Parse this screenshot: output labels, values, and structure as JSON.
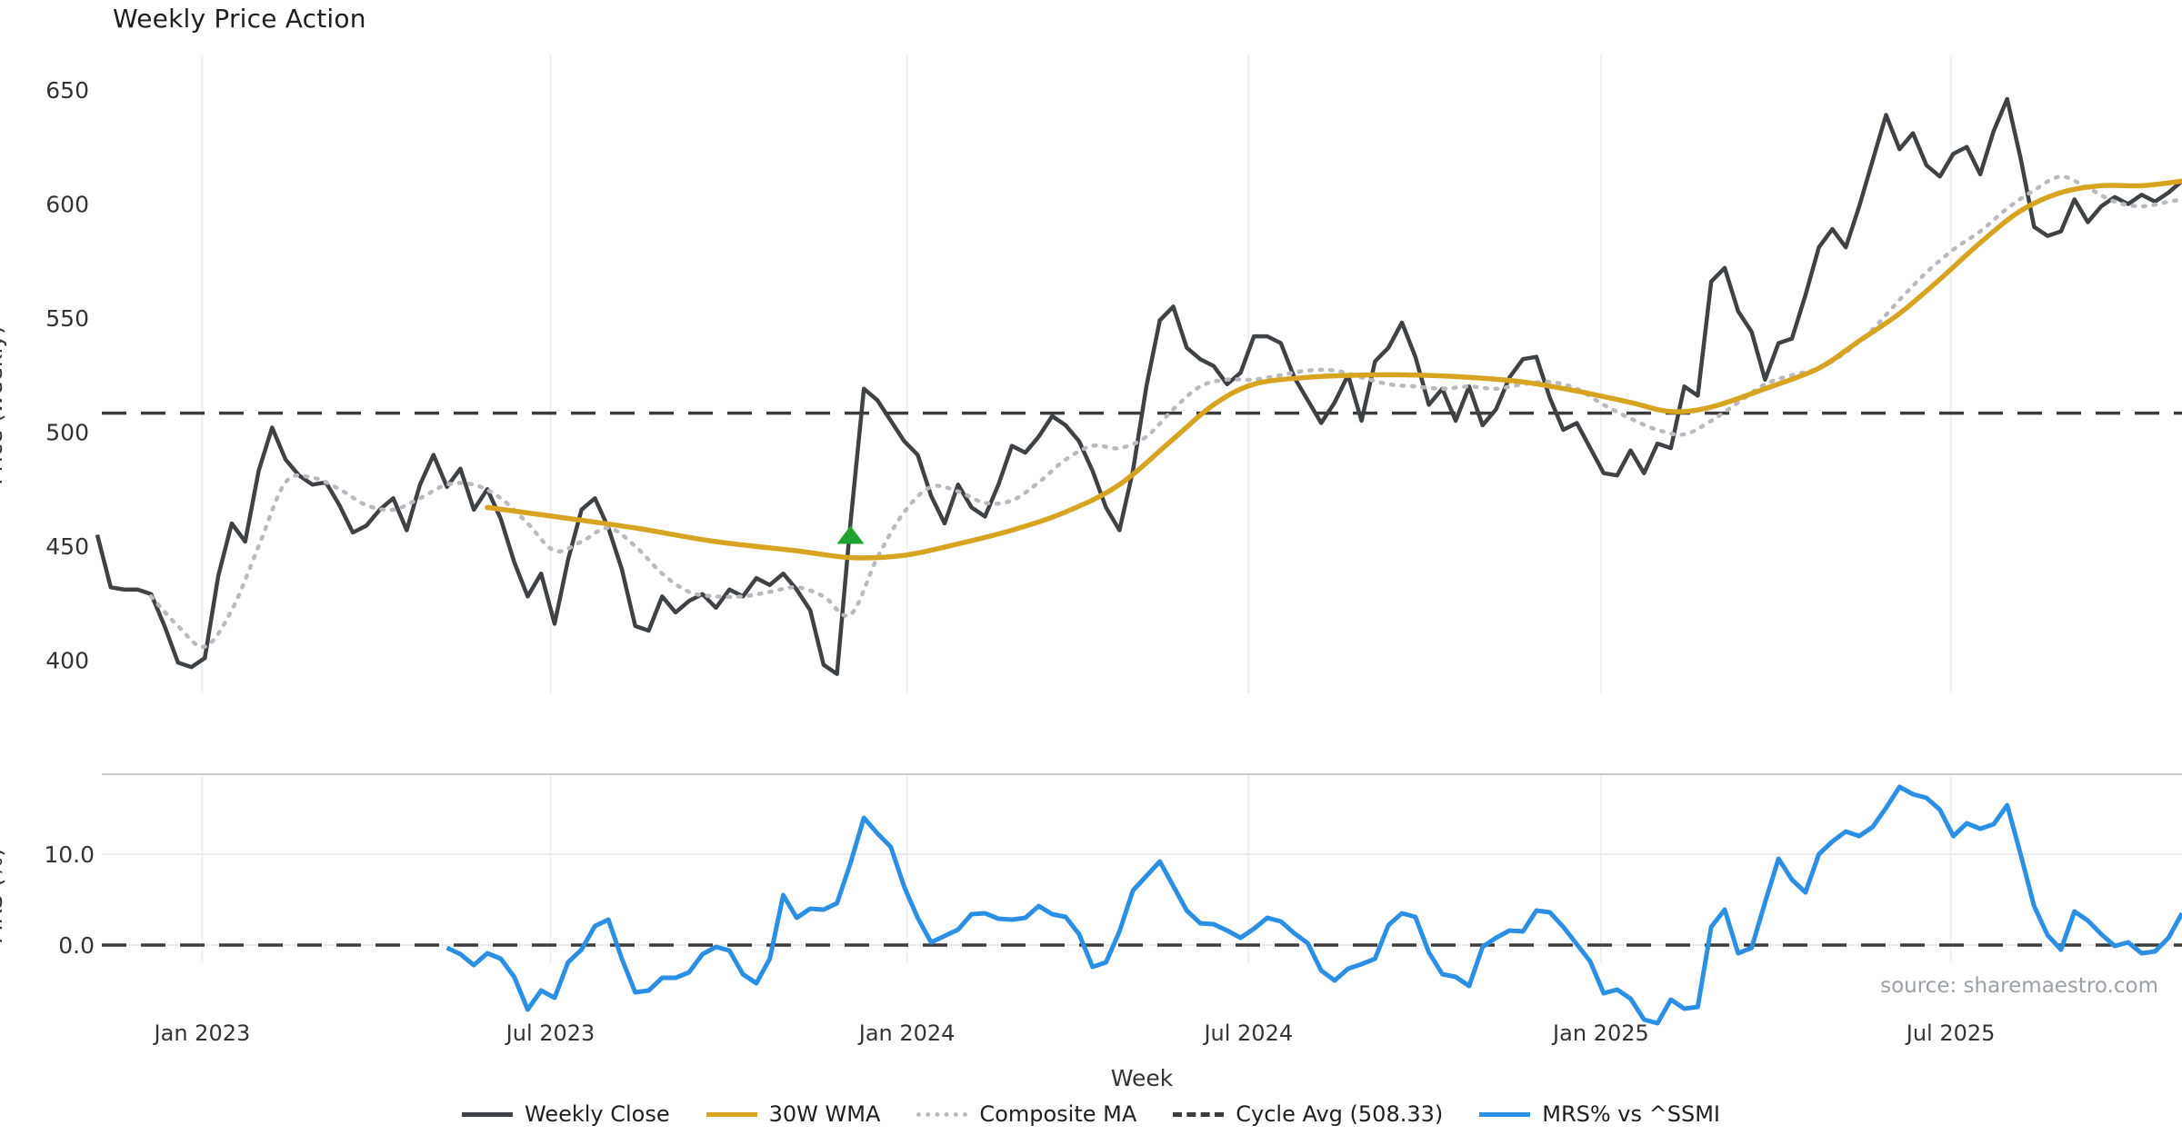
{
  "title": "Weekly Price Action",
  "source": "source: sharemaestro.com",
  "legend": {
    "items": [
      {
        "label": "Weekly Close",
        "color": "#3f4245",
        "style": "solid"
      },
      {
        "label": "30W WMA",
        "color": "#d7a422",
        "style": "solid"
      },
      {
        "label": "Composite MA",
        "color": "#b9b9bf",
        "style": "dotted"
      },
      {
        "label": "Cycle Avg (508.33)",
        "color": "#3c3c3c",
        "style": "dashed"
      },
      {
        "label": "MRS% vs ^SSMI",
        "color": "#2b8fe4",
        "style": "solid"
      }
    ]
  },
  "chart_data": {
    "type": "line",
    "xlabel": "Week",
    "x_unit": "week_index",
    "weeks_total": 156,
    "xticks": [
      {
        "week": 7.8,
        "label": "Jan 2023"
      },
      {
        "week": 33.7,
        "label": "Jul 2023"
      },
      {
        "week": 60.2,
        "label": "Jan 2024"
      },
      {
        "week": 85.6,
        "label": "Jul 2024"
      },
      {
        "week": 111.8,
        "label": "Jan 2025"
      },
      {
        "week": 137.8,
        "label": "Jul 2025"
      }
    ],
    "panels": [
      {
        "name": "price",
        "ylabel": "Price (weekly)",
        "ylim": [
          385.5,
          665.5
        ],
        "yticks": [
          400,
          450,
          500,
          550,
          600,
          650
        ],
        "grid": "vertical-only",
        "cycle_avg": 508.33,
        "marker": {
          "shape": "triangle-up",
          "week": 56,
          "price": 455,
          "color": "#21a331"
        },
        "series": [
          {
            "name": "Weekly Close",
            "color": "#3f4245",
            "style": "solid",
            "start_week": 0,
            "values": [
              455,
              432,
              431,
              431,
              429,
              415,
              399,
              397,
              401,
              437,
              460,
              452,
              483,
              502,
              488,
              481,
              477,
              478,
              468,
              456,
              459,
              466,
              471,
              457,
              477,
              490,
              476,
              484,
              466,
              475,
              462,
              443,
              428,
              438,
              416,
              444,
              466,
              471,
              458,
              440,
              415,
              413,
              428,
              421,
              426,
              429,
              423,
              431,
              428,
              436,
              433,
              438,
              431,
              422,
              398,
              394,
              460,
              519,
              514,
              505,
              496,
              490,
              472,
              460,
              477,
              467,
              463,
              477,
              494,
              491,
              498,
              507,
              503,
              496,
              483,
              467,
              457,
              483,
              520,
              549,
              555,
              537,
              532,
              529,
              521,
              526,
              542,
              542,
              539,
              524,
              514,
              504,
              513,
              525,
              505,
              531,
              537,
              548,
              533,
              512,
              519,
              505,
              520,
              503,
              510,
              524,
              532,
              533,
              515,
              501,
              504,
              493,
              482,
              481,
              492,
              482,
              495,
              493,
              520,
              516,
              566,
              572,
              553,
              544,
              523,
              539,
              541,
              560,
              581,
              589,
              581,
              599,
              619,
              639,
              624,
              631,
              617,
              612,
              622,
              625,
              613,
              632,
              646,
              620,
              590,
              586,
              588,
              602,
              592,
              599,
              603,
              600,
              604,
              601,
              605,
              610
            ]
          },
          {
            "name": "30W WMA",
            "color": "#d7a422",
            "style": "solid",
            "control_points": [
              [
                29,
                467
              ],
              [
                34,
                463
              ],
              [
                40,
                458
              ],
              [
                46,
                452
              ],
              [
                52,
                448
              ],
              [
                56,
                445
              ],
              [
                60,
                446
              ],
              [
                64,
                451
              ],
              [
                68,
                457
              ],
              [
                72,
                465
              ],
              [
                76,
                477
              ],
              [
                80,
                497
              ],
              [
                83,
                512
              ],
              [
                86,
                521
              ],
              [
                90,
                524
              ],
              [
                94,
                525
              ],
              [
                98,
                525
              ],
              [
                102,
                524
              ],
              [
                106,
                522
              ],
              [
                110,
                518
              ],
              [
                114,
                513
              ],
              [
                117,
                509
              ],
              [
                120,
                511
              ],
              [
                124,
                519
              ],
              [
                128,
                528
              ],
              [
                131,
                540
              ],
              [
                134,
                552
              ],
              [
                137,
                567
              ],
              [
                140,
                583
              ],
              [
                143,
                597
              ],
              [
                146,
                605
              ],
              [
                149,
                608
              ],
              [
                152,
                608
              ],
              [
                155,
                610
              ]
            ]
          },
          {
            "name": "Composite MA",
            "color": "#b9b9bf",
            "style": "dotted",
            "control_points": [
              [
                4,
                428
              ],
              [
                6,
                415
              ],
              [
                8,
                406
              ],
              [
                10,
                422
              ],
              [
                12,
                450
              ],
              [
                14,
                478
              ],
              [
                16,
                480
              ],
              [
                18,
                475
              ],
              [
                20,
                468
              ],
              [
                22,
                466
              ],
              [
                24,
                471
              ],
              [
                26,
                477
              ],
              [
                28,
                477
              ],
              [
                30,
                471
              ],
              [
                32,
                460
              ],
              [
                34,
                448
              ],
              [
                36,
                452
              ],
              [
                38,
                458
              ],
              [
                40,
                450
              ],
              [
                42,
                438
              ],
              [
                44,
                430
              ],
              [
                46,
                428
              ],
              [
                48,
                428
              ],
              [
                50,
                430
              ],
              [
                52,
                432
              ],
              [
                54,
                428
              ],
              [
                56,
                420
              ],
              [
                58,
                445
              ],
              [
                60,
                465
              ],
              [
                62,
                476
              ],
              [
                64,
                474
              ],
              [
                66,
                469
              ],
              [
                68,
                470
              ],
              [
                70,
                478
              ],
              [
                72,
                488
              ],
              [
                74,
                494
              ],
              [
                76,
                493
              ],
              [
                78,
                498
              ],
              [
                80,
                510
              ],
              [
                82,
                520
              ],
              [
                84,
                523
              ],
              [
                86,
                523
              ],
              [
                88,
                525
              ],
              [
                90,
                527
              ],
              [
                92,
                527
              ],
              [
                94,
                524
              ],
              [
                96,
                521
              ],
              [
                98,
                520
              ],
              [
                100,
                519
              ],
              [
                102,
                520
              ],
              [
                104,
                519
              ],
              [
                106,
                521
              ],
              [
                108,
                522
              ],
              [
                110,
                519
              ],
              [
                112,
                512
              ],
              [
                114,
                506
              ],
              [
                116,
                501
              ],
              [
                118,
                499
              ],
              [
                120,
                505
              ],
              [
                122,
                513
              ],
              [
                124,
                521
              ],
              [
                126,
                525
              ],
              [
                128,
                528
              ],
              [
                130,
                535
              ],
              [
                132,
                545
              ],
              [
                134,
                558
              ],
              [
                136,
                570
              ],
              [
                138,
                580
              ],
              [
                140,
                588
              ],
              [
                142,
                598
              ],
              [
                144,
                606
              ],
              [
                146,
                612
              ],
              [
                148,
                607
              ],
              [
                150,
                601
              ],
              [
                152,
                599
              ],
              [
                154,
                601
              ],
              [
                155,
                602
              ]
            ]
          },
          {
            "name": "Cycle Avg (508.33)",
            "color": "#3c3c3c",
            "style": "dashed",
            "value": 508.33
          }
        ]
      },
      {
        "name": "mrs",
        "ylabel": "MRS (%)",
        "yticks_labeled": [
          {
            "v": 10,
            "label": "10.0"
          },
          {
            "v": 0,
            "label": "0.0"
          }
        ],
        "zero_line": 0,
        "series": [
          {
            "name": "MRS% vs ^SSMI",
            "color": "#2b8fe4",
            "style": "solid",
            "start_week": 26,
            "values": [
              -0.3,
              -1.0,
              -2.2,
              -0.9,
              -1.5,
              -3.5,
              -7.1,
              -5.0,
              -5.8,
              -1.9,
              -0.5,
              2.1,
              2.8,
              -1.5,
              -5.2,
              -5.0,
              -3.6,
              -3.6,
              -3.0,
              -1.0,
              -0.2,
              -0.6,
              -3.2,
              -4.2,
              -1.5,
              5.5,
              3.0,
              4.0,
              3.9,
              4.6,
              9.0,
              14.0,
              12.3,
              10.8,
              6.4,
              3.0,
              0.3,
              1.0,
              1.7,
              3.4,
              3.5,
              2.9,
              2.8,
              3.0,
              4.3,
              3.4,
              3.1,
              1.2,
              -2.4,
              -1.9,
              1.5,
              6.0,
              7.6,
              9.2,
              6.5,
              3.8,
              2.4,
              2.3,
              1.6,
              0.8,
              1.8,
              3.0,
              2.6,
              1.3,
              0.2,
              -2.8,
              -3.9,
              -2.6,
              -2.1,
              -1.5,
              2.2,
              3.5,
              3.1,
              -0.8,
              -3.2,
              -3.5,
              -4.5,
              -0.2,
              0.8,
              1.6,
              1.5,
              3.8,
              3.6,
              2.0,
              0.1,
              -1.8,
              -5.3,
              -4.9,
              -5.9,
              -8.2,
              -8.6,
              -6.0,
              -7.0,
              -6.8,
              2.0,
              3.9,
              -0.9,
              -0.3,
              4.7,
              9.5,
              7.2,
              5.8,
              10.0,
              11.4,
              12.5,
              12.0,
              13.0,
              15.1,
              17.4,
              16.6,
              16.2,
              14.9,
              12.0,
              13.4,
              12.8,
              13.3,
              15.4,
              10.0,
              4.3,
              1.1,
              -0.5,
              3.7,
              2.7,
              1.2,
              -0.1,
              0.3,
              -0.9,
              -0.7,
              0.8,
              3.5
            ]
          }
        ]
      }
    ]
  }
}
